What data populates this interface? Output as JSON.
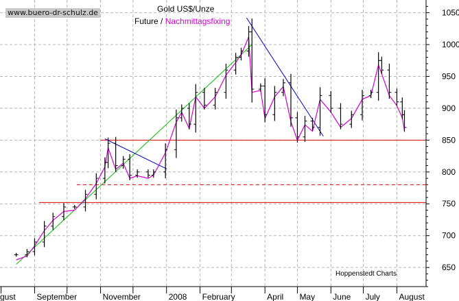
{
  "watermark": "www.buero-dr-schulz.de",
  "title": "Gold US$/Unze",
  "subtitle": {
    "part1": "Future /",
    "part2": "Nachmittagsfixing"
  },
  "credit": "Hoppenstedt Charts",
  "colors": {
    "bars": "#000000",
    "fixing_line": "#d100d1",
    "support_line": "#e00000",
    "uptrend_line": "#00c000",
    "downtrend_line": "#0000c8",
    "grid": "#b4b4b4"
  },
  "chart_data": {
    "type": "line",
    "title": "Gold US$/Unze",
    "xlabel": "",
    "ylabel": "",
    "ylim": [
      620,
      1070
    ],
    "yticks": [
      650,
      700,
      750,
      800,
      850,
      900,
      950,
      1000,
      1050
    ],
    "xticks": [
      "gust",
      "September",
      "November",
      "2008",
      "February",
      "April",
      "May",
      "June",
      "July",
      "August"
    ],
    "grid": true,
    "y_axis_position": "right",
    "series": [
      {
        "name": "Future",
        "style": "ohlc-bars",
        "points": [
          {
            "d": "2007-08-15",
            "v": 670
          },
          {
            "d": "2007-08-25",
            "v": 675
          },
          {
            "d": "2007-09-01",
            "v": 690
          },
          {
            "d": "2007-09-10",
            "v": 715
          },
          {
            "d": "2007-09-18",
            "v": 730
          },
          {
            "d": "2007-09-28",
            "v": 745
          },
          {
            "d": "2007-10-08",
            "v": 745
          },
          {
            "d": "2007-10-18",
            "v": 765
          },
          {
            "d": "2007-10-28",
            "v": 790
          },
          {
            "d": "2007-11-05",
            "v": 815
          },
          {
            "d": "2007-11-08",
            "v": 845
          },
          {
            "d": "2007-11-15",
            "v": 810
          },
          {
            "d": "2007-11-22",
            "v": 820
          },
          {
            "d": "2007-11-28",
            "v": 795
          },
          {
            "d": "2007-12-05",
            "v": 800
          },
          {
            "d": "2007-12-15",
            "v": 795
          },
          {
            "d": "2007-12-20",
            "v": 800
          },
          {
            "d": "2007-12-31",
            "v": 835
          },
          {
            "d": "2008-01-10",
            "v": 885
          },
          {
            "d": "2008-01-15",
            "v": 900
          },
          {
            "d": "2008-01-22",
            "v": 875
          },
          {
            "d": "2008-01-28",
            "v": 925
          },
          {
            "d": "2008-02-05",
            "v": 905
          },
          {
            "d": "2008-02-15",
            "v": 925
          },
          {
            "d": "2008-02-25",
            "v": 960
          },
          {
            "d": "2008-03-05",
            "v": 980
          },
          {
            "d": "2008-03-10",
            "v": 990
          },
          {
            "d": "2008-03-17",
            "v": 1020
          },
          {
            "d": "2008-03-20",
            "v": 930
          },
          {
            "d": "2008-03-28",
            "v": 935
          },
          {
            "d": "2008-04-01",
            "v": 890
          },
          {
            "d": "2008-04-10",
            "v": 925
          },
          {
            "d": "2008-04-18",
            "v": 940
          },
          {
            "d": "2008-04-25",
            "v": 885
          },
          {
            "d": "2008-05-01",
            "v": 855
          },
          {
            "d": "2008-05-08",
            "v": 880
          },
          {
            "d": "2008-05-15",
            "v": 870
          },
          {
            "d": "2008-05-22",
            "v": 920
          },
          {
            "d": "2008-06-01",
            "v": 900
          },
          {
            "d": "2008-06-10",
            "v": 875
          },
          {
            "d": "2008-06-20",
            "v": 890
          },
          {
            "d": "2008-06-30",
            "v": 920
          },
          {
            "d": "2008-07-08",
            "v": 925
          },
          {
            "d": "2008-07-15",
            "v": 975
          },
          {
            "d": "2008-07-18",
            "v": 960
          },
          {
            "d": "2008-07-25",
            "v": 925
          },
          {
            "d": "2008-08-01",
            "v": 910
          },
          {
            "d": "2008-08-06",
            "v": 890
          },
          {
            "d": "2008-08-08",
            "v": 870
          }
        ]
      },
      {
        "name": "Nachmittagsfixing",
        "style": "line",
        "points": [
          {
            "d": "2007-08-15",
            "v": 662
          },
          {
            "d": "2007-08-25",
            "v": 668
          },
          {
            "d": "2007-09-01",
            "v": 684
          },
          {
            "d": "2007-09-10",
            "v": 708
          },
          {
            "d": "2007-09-18",
            "v": 724
          },
          {
            "d": "2007-09-28",
            "v": 738
          },
          {
            "d": "2007-10-08",
            "v": 740
          },
          {
            "d": "2007-10-18",
            "v": 758
          },
          {
            "d": "2007-10-28",
            "v": 782
          },
          {
            "d": "2007-11-05",
            "v": 808
          },
          {
            "d": "2007-11-08",
            "v": 838
          },
          {
            "d": "2007-11-15",
            "v": 804
          },
          {
            "d": "2007-11-22",
            "v": 814
          },
          {
            "d": "2007-11-28",
            "v": 790
          },
          {
            "d": "2007-12-05",
            "v": 794
          },
          {
            "d": "2007-12-15",
            "v": 790
          },
          {
            "d": "2007-12-20",
            "v": 795
          },
          {
            "d": "2007-12-31",
            "v": 830
          },
          {
            "d": "2008-01-10",
            "v": 878
          },
          {
            "d": "2008-01-15",
            "v": 894
          },
          {
            "d": "2008-01-22",
            "v": 868
          },
          {
            "d": "2008-01-28",
            "v": 918
          },
          {
            "d": "2008-02-05",
            "v": 900
          },
          {
            "d": "2008-02-15",
            "v": 918
          },
          {
            "d": "2008-02-25",
            "v": 952
          },
          {
            "d": "2008-03-05",
            "v": 972
          },
          {
            "d": "2008-03-10",
            "v": 984
          },
          {
            "d": "2008-03-17",
            "v": 1012
          },
          {
            "d": "2008-03-20",
            "v": 925
          },
          {
            "d": "2008-03-28",
            "v": 928
          },
          {
            "d": "2008-04-01",
            "v": 884
          },
          {
            "d": "2008-04-10",
            "v": 918
          },
          {
            "d": "2008-04-18",
            "v": 934
          },
          {
            "d": "2008-04-25",
            "v": 879
          },
          {
            "d": "2008-05-01",
            "v": 850
          },
          {
            "d": "2008-05-08",
            "v": 874
          },
          {
            "d": "2008-05-15",
            "v": 864
          },
          {
            "d": "2008-05-22",
            "v": 914
          },
          {
            "d": "2008-06-01",
            "v": 894
          },
          {
            "d": "2008-06-10",
            "v": 870
          },
          {
            "d": "2008-06-20",
            "v": 884
          },
          {
            "d": "2008-06-30",
            "v": 914
          },
          {
            "d": "2008-07-08",
            "v": 920
          },
          {
            "d": "2008-07-15",
            "v": 968
          },
          {
            "d": "2008-07-18",
            "v": 954
          },
          {
            "d": "2008-07-25",
            "v": 920
          },
          {
            "d": "2008-08-01",
            "v": 904
          },
          {
            "d": "2008-08-06",
            "v": 885
          },
          {
            "d": "2008-08-08",
            "v": 865
          }
        ]
      }
    ],
    "horizontal_lines": [
      {
        "value": 850,
        "style": "solid",
        "from": "2007-11-01"
      },
      {
        "value": 780,
        "style": "dashed",
        "from": "2007-10-10"
      },
      {
        "value": 752,
        "style": "solid",
        "from": "2007-09-05"
      }
    ],
    "trend_lines": [
      {
        "kind": "uptrend",
        "from": {
          "d": "2007-08-15",
          "v": 655
        },
        "to": {
          "d": "2008-03-20",
          "v": 1000
        }
      },
      {
        "kind": "downtrend",
        "from": {
          "d": "2007-11-05",
          "v": 852
        },
        "to": {
          "d": "2008-01-01",
          "v": 805
        }
      },
      {
        "kind": "downtrend",
        "from": {
          "d": "2008-03-15",
          "v": 1042
        },
        "to": {
          "d": "2008-05-25",
          "v": 856
        }
      }
    ]
  }
}
